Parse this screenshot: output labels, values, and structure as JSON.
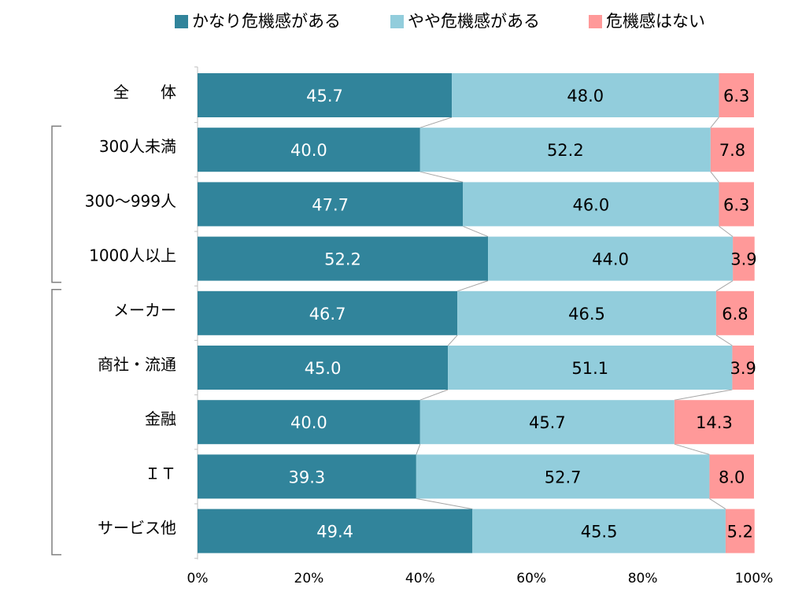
{
  "chart_data": {
    "type": "bar",
    "orientation": "horizontal",
    "stacked": true,
    "percent_stacked": true,
    "categories": [
      "全　　体",
      "300人未満",
      "300～999人",
      "1000人以上",
      "メーカー",
      "商社・流通",
      "金融",
      "ＩＴ",
      "サービス他"
    ],
    "series": [
      {
        "name": "かなり危機感がある",
        "color": "#31849b",
        "label_color": "#ffffff",
        "values": [
          45.7,
          40.0,
          47.7,
          52.2,
          46.7,
          45.0,
          40.0,
          39.3,
          49.4
        ],
        "labels": [
          "45.7",
          "40.0",
          "47.7",
          "52.2",
          "46.7",
          "45.0",
          "40.0",
          "39.3",
          "49.4"
        ]
      },
      {
        "name": "やや危機感がある",
        "color": "#92cddc",
        "label_color": "#000000",
        "values": [
          48.0,
          52.2,
          46.0,
          44.0,
          46.5,
          51.1,
          45.7,
          52.7,
          45.5
        ],
        "labels": [
          "48.0",
          "52.2",
          "46.0",
          "44.0",
          "46.5",
          "51.1",
          "45.7",
          "52.7",
          "45.5"
        ]
      },
      {
        "name": "危機感はない",
        "color": "#ff9999",
        "label_color": "#000000",
        "values": [
          6.3,
          7.8,
          6.3,
          3.9,
          6.8,
          3.9,
          14.3,
          8.0,
          5.2
        ],
        "labels": [
          "6.3",
          "7.8",
          "6.3",
          "3.9",
          "6.8",
          "3.9",
          "14.3",
          "8.0",
          "5.2"
        ]
      }
    ],
    "x_ticks": [
      "0%",
      "20%",
      "40%",
      "60%",
      "80%",
      "100%"
    ],
    "xlim": [
      0,
      100
    ],
    "legend_position": "top",
    "grid": false,
    "series_lines": true,
    "groups": [
      {
        "members": [
          "300人未満",
          "300～999人",
          "1000人以上"
        ]
      },
      {
        "members": [
          "メーカー",
          "商社・流通",
          "金融",
          "ＩＴ",
          "サービス他"
        ]
      }
    ]
  }
}
